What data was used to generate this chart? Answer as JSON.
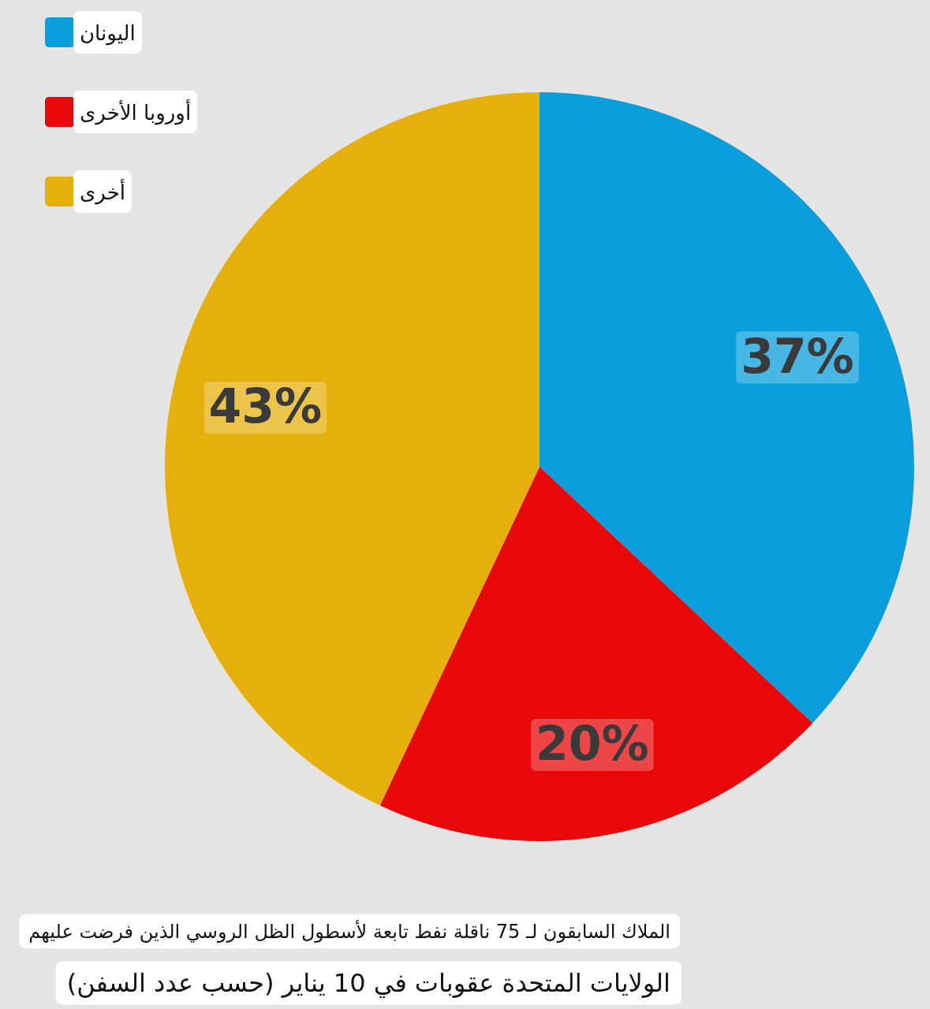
{
  "chart_data": {
    "type": "pie",
    "title": "الملاك السابقون لـ 75 ناقلة نفط تابعة لأسطول الظل الروسي الذين فرضت عليهم",
    "subtitle": "الولايات المتحدة عقوبات في 10 يناير (حسب عدد السفن)",
    "categories": [
      "اليونان",
      "أوروبا الأخرى",
      "أخرى"
    ],
    "values": [
      37,
      20,
      43
    ],
    "colors": [
      "#0a9fdc",
      "#e8080a",
      "#e6b00c"
    ],
    "value_labels": [
      "37%",
      "20%",
      "43%"
    ],
    "legend": "top left"
  }
}
